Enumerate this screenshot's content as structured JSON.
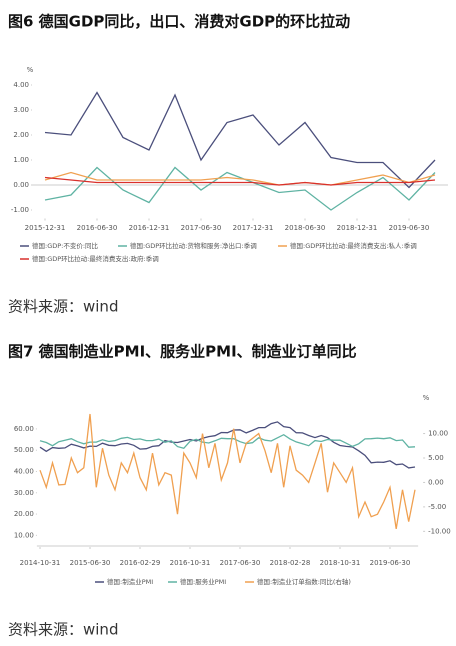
{
  "headings": [
    "图6 德国GDP同比，出口、消费对GDP的环比拉动",
    "图7 德国制造业PMI、服务业PMI、制造业订单同比"
  ],
  "sources": [
    "资料来源：wind",
    "资料来源：wind"
  ],
  "chart_data": [
    {
      "type": "line",
      "ylabel": "%",
      "categories": [
        "2015-12-31",
        null,
        "2016-06-30",
        null,
        "2016-12-31",
        null,
        "2017-06-30",
        null,
        "2017-12-31",
        null,
        "2018-06-30",
        null,
        "2018-12-31",
        null,
        "2019-06-30",
        null
      ],
      "ylim": [
        -1.3,
        4.3
      ],
      "yticks": [
        {
          "value": 4,
          "label": "4.00"
        },
        {
          "value": 3,
          "label": "3.00"
        },
        {
          "value": 2,
          "label": "2.00"
        },
        {
          "value": 1,
          "label": "1.00"
        },
        {
          "value": 0,
          "label": "0.00"
        },
        {
          "value": -1,
          "label": "-1.00"
        }
      ],
      "series": [
        {
          "name": "德国:GDP:不变价:同比",
          "color": "#4b4f7c",
          "values": [
            2.1,
            2.0,
            3.7,
            1.9,
            1.4,
            3.6,
            1.0,
            2.5,
            2.8,
            1.6,
            2.5,
            1.1,
            0.9,
            0.9,
            -0.1,
            1.0
          ]
        },
        {
          "name": "德国:GDP环比拉动:货物和服务:净出口:季调",
          "color": "#5fb3a3",
          "values": [
            -0.6,
            -0.4,
            0.7,
            -0.2,
            -0.7,
            0.7,
            -0.2,
            0.5,
            0.1,
            -0.3,
            -0.2,
            -1.0,
            -0.3,
            0.3,
            -0.6,
            0.5
          ]
        },
        {
          "name": "德国:GDP环比拉动:最终消费支出:私人:季调",
          "color": "#f0a050",
          "values": [
            0.2,
            0.5,
            0.2,
            0.2,
            0.2,
            0.2,
            0.2,
            0.3,
            0.2,
            0.0,
            0.1,
            0.0,
            0.2,
            0.4,
            0.1,
            0.4
          ]
        },
        {
          "name": "德国:GDP环比拉动:最终消费支出:政府:季调",
          "color": "#d9302c",
          "values": [
            0.3,
            0.2,
            0.1,
            0.1,
            0.1,
            0.1,
            0.1,
            0.1,
            0.1,
            0.0,
            0.1,
            0.0,
            0.1,
            0.1,
            0.1,
            0.2
          ]
        }
      ]
    },
    {
      "type": "line",
      "y2label": "%",
      "categories": [
        "2014-10-31",
        null,
        null,
        null,
        null,
        null,
        null,
        null,
        "2015-06-30",
        null,
        null,
        null,
        null,
        null,
        null,
        null,
        "2016-02-29",
        null,
        null,
        null,
        null,
        null,
        null,
        null,
        "2016-10-31",
        null,
        null,
        null,
        null,
        null,
        null,
        null,
        "2017-06-30",
        null,
        null,
        null,
        null,
        null,
        null,
        null,
        "2018-02-28",
        null,
        null,
        null,
        null,
        null,
        null,
        null,
        "2018-10-31",
        null,
        null,
        null,
        null,
        null,
        null,
        null,
        "2019-06-30",
        null,
        null,
        null,
        null
      ],
      "ylim": [
        5,
        67
      ],
      "yticks": [
        {
          "value": 60,
          "label": "60.00"
        },
        {
          "value": 50,
          "label": "50.00"
        },
        {
          "value": 40,
          "label": "40.00"
        },
        {
          "value": 30,
          "label": "30.00"
        },
        {
          "value": 20,
          "label": "20.00"
        },
        {
          "value": 10,
          "label": "10.00"
        }
      ],
      "y2lim": [
        -13,
        14
      ],
      "y2ticks": [
        {
          "value": 10,
          "label": "10.00"
        },
        {
          "value": 5,
          "label": "5.00"
        },
        {
          "value": 0,
          "label": "0.00"
        },
        {
          "value": -5,
          "label": "-5.00"
        },
        {
          "value": -10,
          "label": "-10.00"
        }
      ],
      "series": [
        {
          "name": "德国:制造业PMI",
          "color": "#4b4f7c",
          "values": [
            51.4,
            49.5,
            51.2,
            50.9,
            51.1,
            52.8,
            52.0,
            51.1,
            51.9,
            51.8,
            53.3,
            52.3,
            52.1,
            52.9,
            53.2,
            52.3,
            50.5,
            50.7,
            51.8,
            52.1,
            54.5,
            53.8,
            53.6,
            54.3,
            55.0,
            54.3,
            55.6,
            56.4,
            56.8,
            58.3,
            58.2,
            59.5,
            59.6,
            58.1,
            59.3,
            60.6,
            60.6,
            62.5,
            63.3,
            61.1,
            60.6,
            58.2,
            58.1,
            56.9,
            55.9,
            56.9,
            55.9,
            53.7,
            52.2,
            51.8,
            51.5,
            49.7,
            47.6,
            44.1,
            44.4,
            44.3,
            45.0,
            43.2,
            43.5,
            41.7,
            42.1
          ]
        },
        {
          "name": "德国:服务业PMI",
          "color": "#5fb3a3",
          "values": [
            54.4,
            53.6,
            52.1,
            54.0,
            54.7,
            55.4,
            54.0,
            53.0,
            53.8,
            53.8,
            54.9,
            54.1,
            54.5,
            55.6,
            56.0,
            55.0,
            55.3,
            54.5,
            54.5,
            55.2,
            53.7,
            54.4,
            51.7,
            50.9,
            54.2,
            55.1,
            53.8,
            53.4,
            54.4,
            55.6,
            55.4,
            55.4,
            54.0,
            53.1,
            53.5,
            55.8,
            54.7,
            54.3,
            55.8,
            57.3,
            55.3,
            53.9,
            53.0,
            52.1,
            54.5,
            54.1,
            55.0,
            54.7,
            54.7,
            53.3,
            51.8,
            53.0,
            55.3,
            55.4,
            55.7,
            55.4,
            55.8,
            54.5,
            54.8,
            51.4,
            51.6
          ]
        },
        {
          "name": "德国:制造业订单指数:同比(右轴)",
          "color": "#f0a050",
          "axis": "y2",
          "values": [
            2.5,
            -1.0,
            4.0,
            -0.5,
            -0.4,
            5.0,
            2.0,
            3.0,
            14.0,
            -1.0,
            7.0,
            1.5,
            -1.5,
            4.0,
            2.0,
            6.0,
            1.0,
            -1.5,
            6.0,
            -0.5,
            2.0,
            1.5,
            -6.5,
            6.0,
            4.0,
            1.0,
            10.0,
            3.0,
            8.0,
            0.5,
            4.0,
            11.0,
            4.0,
            8.0,
            9.0,
            10.0,
            6.5,
            2.0,
            8.0,
            -1.0,
            7.5,
            2.5,
            1.5,
            0.0,
            4.0,
            8.0,
            -2.0,
            4.0,
            2.0,
            0.0,
            3.0,
            -7.0,
            -4.0,
            -7.0,
            -6.5,
            -4.0,
            -1.0,
            -9.5,
            -1.5,
            -8.0,
            -1.5
          ]
        }
      ]
    }
  ]
}
